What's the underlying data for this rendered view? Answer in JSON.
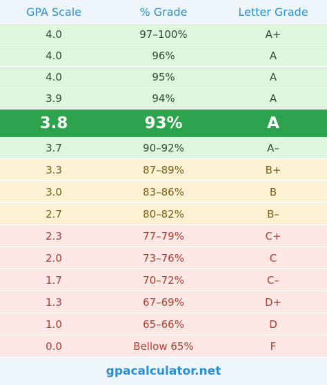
{
  "table": {
    "header": [
      "GPA Scale",
      "% Grade",
      "Letter Grade"
    ],
    "rows": [
      [
        "4.0",
        "97–100%",
        "A+"
      ],
      [
        "4.0",
        "96%",
        "A"
      ],
      [
        "4.0",
        "95%",
        "A"
      ],
      [
        "3.9",
        "94%",
        "A"
      ],
      [
        "3.8",
        "93%",
        "A"
      ],
      [
        "3.7",
        "90–92%",
        "A–"
      ],
      [
        "3.3",
        "87–89%",
        "B+"
      ],
      [
        "3.0",
        "83–86%",
        "B"
      ],
      [
        "2.7",
        "80–82%",
        "B–"
      ],
      [
        "2.3",
        "77–79%",
        "C+"
      ],
      [
        "2.0",
        "73–76%",
        "C"
      ],
      [
        "1.7",
        "70–72%",
        "C–"
      ],
      [
        "1.3",
        "67–69%",
        "D+"
      ],
      [
        "1.0",
        "65–66%",
        "D"
      ],
      [
        "0.0",
        "Bellow 65%",
        "F"
      ]
    ]
  },
  "footer": "gpacalculator.net"
}
